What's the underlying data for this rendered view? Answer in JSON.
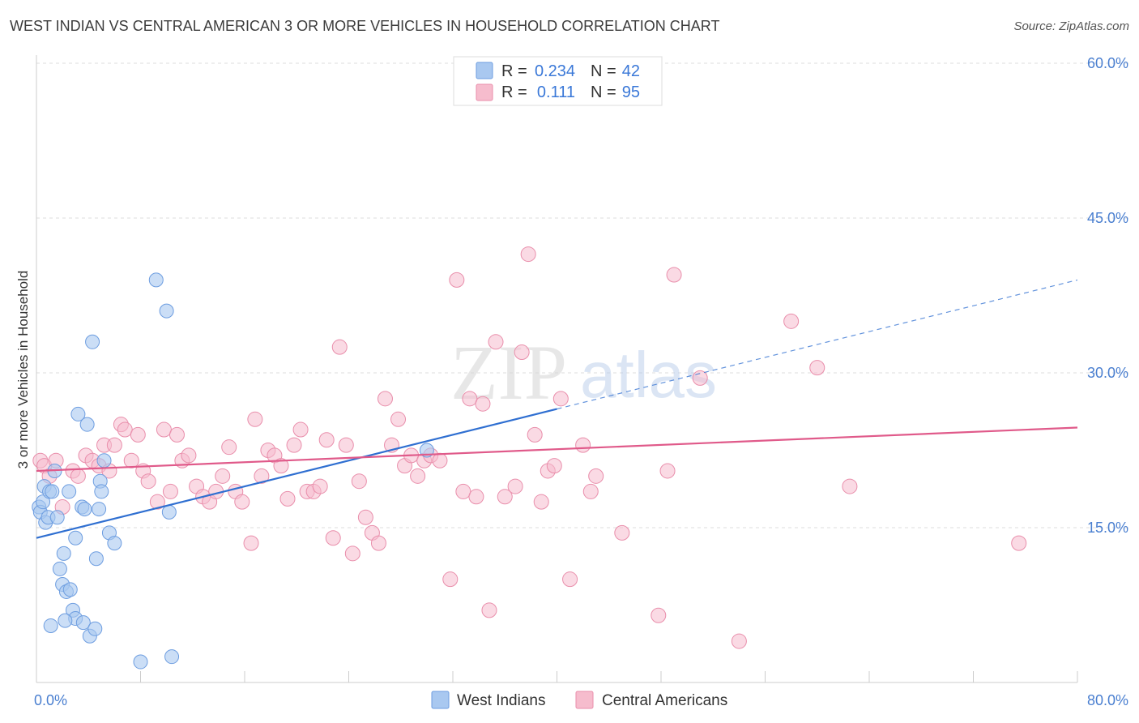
{
  "title": "WEST INDIAN VS CENTRAL AMERICAN 3 OR MORE VEHICLES IN HOUSEHOLD CORRELATION CHART",
  "source": "Source: ZipAtlas.com",
  "watermark": {
    "zip": "ZIP",
    "atlas": "atlas"
  },
  "colors": {
    "blue_fill": "#a9c8f0",
    "blue_stroke": "#6d9de0",
    "blue_line": "#2f6fd1",
    "pink_fill": "#f6bccd",
    "pink_stroke": "#e98eab",
    "pink_line": "#e05a8a",
    "axis_text": "#4a7fd0",
    "grid": "#dddddd"
  },
  "legend": {
    "rows": [
      {
        "r_label": "R =",
        "r_value": "0.234",
        "n_label": "N =",
        "n_value": "42"
      },
      {
        "r_label": "R =",
        "r_value": "0.111",
        "n_label": "N =",
        "n_value": "95"
      }
    ]
  },
  "bottom_legend": [
    "West Indians",
    "Central Americans"
  ],
  "chart_data": {
    "type": "scatter",
    "title": "WEST INDIAN VS CENTRAL AMERICAN 3 OR MORE VEHICLES IN HOUSEHOLD CORRELATION CHART",
    "xlabel": "",
    "ylabel": "3 or more Vehicles in Household",
    "xlim": [
      0,
      80
    ],
    "ylim": [
      0,
      60
    ],
    "x_tick_labels": [
      "0.0%",
      "80.0%"
    ],
    "y_ticks": [
      15,
      30,
      45,
      60
    ],
    "y_tick_labels": [
      "15.0%",
      "30.0%",
      "45.0%",
      "60.0%"
    ],
    "grid": true,
    "series": [
      {
        "name": "West Indians",
        "r": 0.234,
        "n": 42,
        "trend": {
          "x": [
            0,
            40
          ],
          "y": [
            14.0,
            26.5
          ],
          "dashed_to": [
            80,
            39.0
          ]
        },
        "points": [
          [
            0.2,
            17.0
          ],
          [
            0.3,
            16.5
          ],
          [
            0.5,
            17.5
          ],
          [
            0.6,
            19.0
          ],
          [
            0.7,
            15.5
          ],
          [
            0.9,
            16.0
          ],
          [
            1.0,
            18.5
          ],
          [
            1.2,
            18.5
          ],
          [
            1.4,
            20.5
          ],
          [
            1.6,
            16.0
          ],
          [
            1.8,
            11.0
          ],
          [
            2.0,
            9.5
          ],
          [
            2.1,
            12.5
          ],
          [
            2.3,
            8.8
          ],
          [
            2.5,
            18.5
          ],
          [
            2.6,
            9.0
          ],
          [
            2.8,
            7.0
          ],
          [
            3.0,
            6.2
          ],
          [
            3.0,
            14.0
          ],
          [
            3.2,
            26.0
          ],
          [
            3.5,
            17.0
          ],
          [
            3.6,
            5.8
          ],
          [
            3.7,
            16.8
          ],
          [
            3.9,
            25.0
          ],
          [
            4.1,
            4.5
          ],
          [
            4.3,
            33.0
          ],
          [
            4.5,
            5.2
          ],
          [
            4.6,
            12.0
          ],
          [
            4.8,
            16.8
          ],
          [
            4.9,
            19.5
          ],
          [
            5.0,
            18.5
          ],
          [
            5.2,
            21.5
          ],
          [
            5.6,
            14.5
          ],
          [
            6.0,
            13.5
          ],
          [
            8.0,
            2.0
          ],
          [
            9.2,
            39.0
          ],
          [
            10.0,
            36.0
          ],
          [
            10.2,
            16.5
          ],
          [
            10.4,
            2.5
          ],
          [
            30.0,
            22.5
          ],
          [
            1.1,
            5.5
          ],
          [
            2.2,
            6.0
          ]
        ]
      },
      {
        "name": "Central Americans",
        "r": 0.111,
        "n": 95,
        "trend": {
          "x": [
            0,
            80
          ],
          "y": [
            20.5,
            24.7
          ]
        },
        "points": [
          [
            0.3,
            21.5
          ],
          [
            0.6,
            21.0
          ],
          [
            1.0,
            20.0
          ],
          [
            1.5,
            21.5
          ],
          [
            2.0,
            17.0
          ],
          [
            2.8,
            20.5
          ],
          [
            3.2,
            20.0
          ],
          [
            3.8,
            22.0
          ],
          [
            4.3,
            21.5
          ],
          [
            4.8,
            21.0
          ],
          [
            5.2,
            23.0
          ],
          [
            5.6,
            20.5
          ],
          [
            6.0,
            23.0
          ],
          [
            6.5,
            25.0
          ],
          [
            6.8,
            24.5
          ],
          [
            7.3,
            21.5
          ],
          [
            7.8,
            24.0
          ],
          [
            8.2,
            20.5
          ],
          [
            8.6,
            19.5
          ],
          [
            9.3,
            17.5
          ],
          [
            9.8,
            24.5
          ],
          [
            10.3,
            18.5
          ],
          [
            10.8,
            24.0
          ],
          [
            11.2,
            21.5
          ],
          [
            11.7,
            22.0
          ],
          [
            12.3,
            19.0
          ],
          [
            12.8,
            18.0
          ],
          [
            13.3,
            17.5
          ],
          [
            13.8,
            18.5
          ],
          [
            14.3,
            20.0
          ],
          [
            14.8,
            22.8
          ],
          [
            15.3,
            18.5
          ],
          [
            15.8,
            17.5
          ],
          [
            16.5,
            13.5
          ],
          [
            16.8,
            25.5
          ],
          [
            17.3,
            20.0
          ],
          [
            17.8,
            22.5
          ],
          [
            18.3,
            22.0
          ],
          [
            18.8,
            21.0
          ],
          [
            19.3,
            17.8
          ],
          [
            19.8,
            23.0
          ],
          [
            20.3,
            24.5
          ],
          [
            20.8,
            18.5
          ],
          [
            21.3,
            18.5
          ],
          [
            21.8,
            19.0
          ],
          [
            22.3,
            23.5
          ],
          [
            22.8,
            14.0
          ],
          [
            23.3,
            32.5
          ],
          [
            23.8,
            23.0
          ],
          [
            24.3,
            12.5
          ],
          [
            24.8,
            19.5
          ],
          [
            25.3,
            16.0
          ],
          [
            25.8,
            14.5
          ],
          [
            26.3,
            13.5
          ],
          [
            26.8,
            27.5
          ],
          [
            27.3,
            23.0
          ],
          [
            27.8,
            25.5
          ],
          [
            28.3,
            21.0
          ],
          [
            28.8,
            22.0
          ],
          [
            29.3,
            20.0
          ],
          [
            29.8,
            21.5
          ],
          [
            30.3,
            22.0
          ],
          [
            31.0,
            21.5
          ],
          [
            31.8,
            10.0
          ],
          [
            32.3,
            39.0
          ],
          [
            32.8,
            18.5
          ],
          [
            33.3,
            27.5
          ],
          [
            33.8,
            18.0
          ],
          [
            34.3,
            27.0
          ],
          [
            34.8,
            7.0
          ],
          [
            35.3,
            33.0
          ],
          [
            36.0,
            18.0
          ],
          [
            36.8,
            19.0
          ],
          [
            37.3,
            32.0
          ],
          [
            37.8,
            41.5
          ],
          [
            38.3,
            24.0
          ],
          [
            38.8,
            17.5
          ],
          [
            39.3,
            20.5
          ],
          [
            39.8,
            21.0
          ],
          [
            40.3,
            27.5
          ],
          [
            41.0,
            10.0
          ],
          [
            42.0,
            23.0
          ],
          [
            42.6,
            18.5
          ],
          [
            43.0,
            20.0
          ],
          [
            45.0,
            14.5
          ],
          [
            45.6,
            57.5
          ],
          [
            47.8,
            6.5
          ],
          [
            48.5,
            20.5
          ],
          [
            49.0,
            39.5
          ],
          [
            54.0,
            4.0
          ],
          [
            51.0,
            29.5
          ],
          [
            58.0,
            35.0
          ],
          [
            60.0,
            30.5
          ],
          [
            75.5,
            13.5
          ],
          [
            62.5,
            19.0
          ]
        ]
      }
    ]
  }
}
